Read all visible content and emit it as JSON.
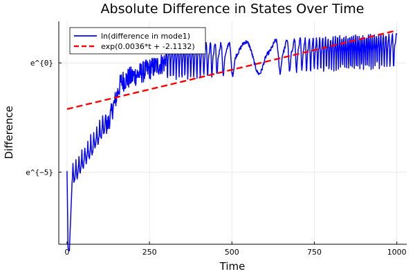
{
  "chart_data": {
    "type": "line",
    "title": "Absolute Difference in States Over Time",
    "xlabel": "Time",
    "ylabel": "Difference",
    "xlim": [
      -25,
      1030
    ],
    "ylim": [
      -8.3,
      1.9
    ],
    "x_ticks": [
      0,
      250,
      500,
      750,
      1000
    ],
    "x_tick_labels": [
      "0",
      "250",
      "500",
      "750",
      "1000"
    ],
    "y_ticks": [
      0,
      -5
    ],
    "y_tick_labels": [
      "e^{0}",
      "e^{−5}"
    ],
    "grid": true,
    "legend_position": "top-left",
    "series": [
      {
        "name": "ln(difference in mode1)",
        "color": "#0000ff",
        "style": "solid",
        "description": "noisy oscillatory log difference",
        "key_points": [
          {
            "t": 0,
            "v": -4.95
          },
          {
            "t": 7,
            "v": -8.6
          },
          {
            "t": 15,
            "v": -5.6
          },
          {
            "t": 40,
            "v": -4.2
          },
          {
            "t": 80,
            "v": -3.6
          },
          {
            "t": 120,
            "v": -3.0
          },
          {
            "t": 150,
            "v": -1.5
          },
          {
            "t": 200,
            "v": -0.4
          },
          {
            "t": 300,
            "v": 0.3
          },
          {
            "t": 450,
            "v": 0.5
          },
          {
            "t": 600,
            "v": 0.9
          },
          {
            "t": 750,
            "v": 1.0
          },
          {
            "t": 900,
            "v": 1.1
          },
          {
            "t": 1000,
            "v": 0.7
          }
        ]
      },
      {
        "name": "exp(0.0036*t + -2.1132)",
        "color": "#ff0000",
        "style": "dashed",
        "slope": 0.0036,
        "intercept": -2.1132,
        "x_range": [
          0,
          1000
        ]
      }
    ]
  }
}
